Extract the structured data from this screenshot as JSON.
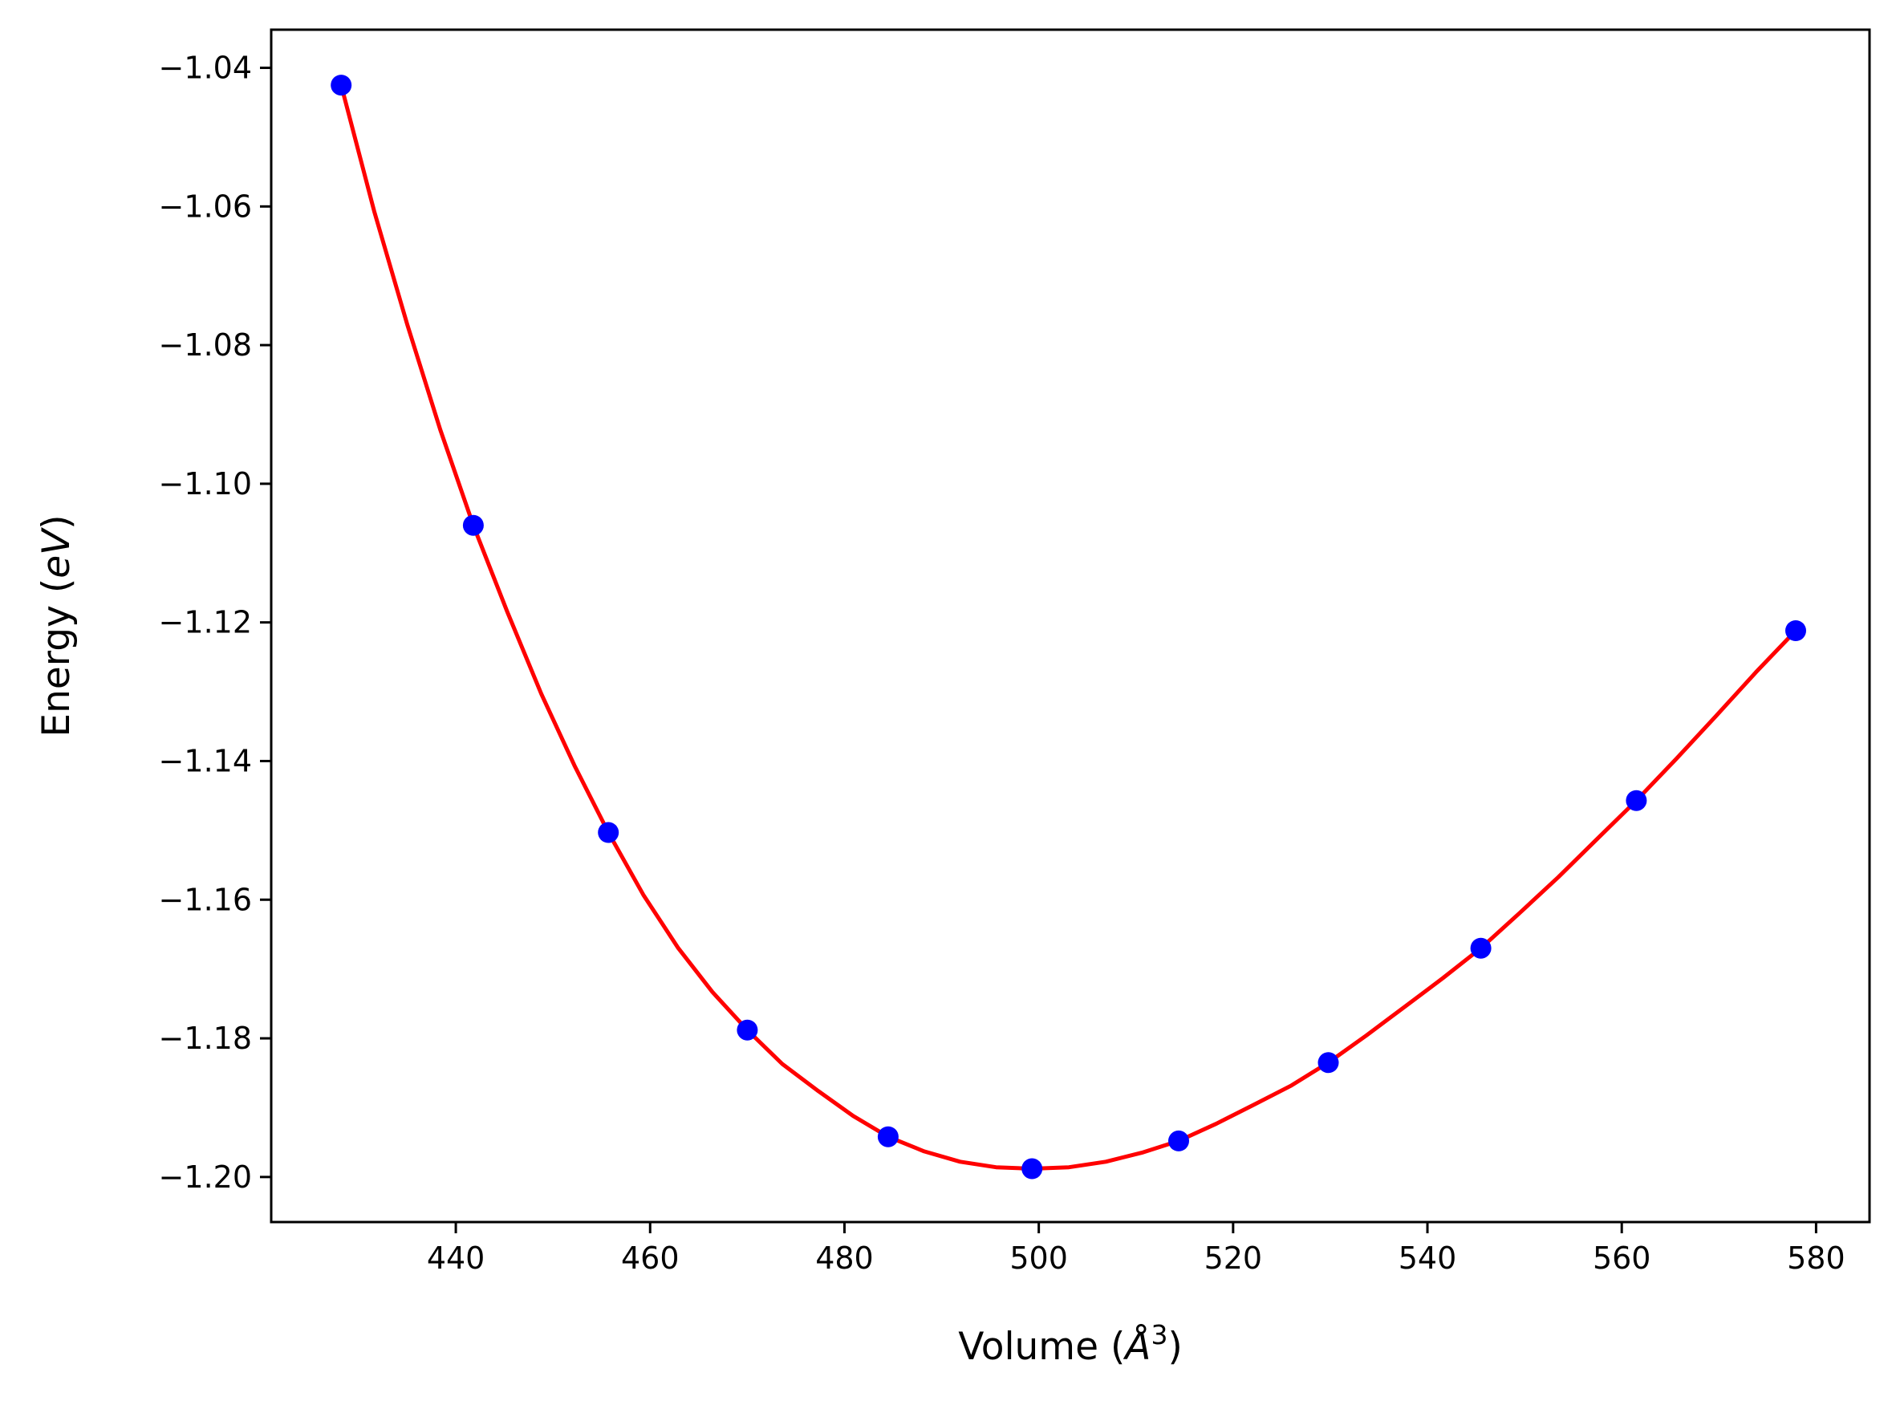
{
  "chart_data": {
    "type": "scatter",
    "xlabel": "Volume (",
    "xlabel_unit": "Å",
    "xlabel_power": "3",
    "xlabel_close": ")",
    "ylabel": "Energy (",
    "ylabel_unit": "eV",
    "ylabel_close": ")",
    "xlim": [
      421,
      585.5
    ],
    "ylim": [
      -1.2065,
      -1.0345
    ],
    "x_ticks": [
      440,
      460,
      480,
      500,
      520,
      540,
      560,
      580
    ],
    "x_tick_labels": [
      "440",
      "460",
      "480",
      "500",
      "520",
      "540",
      "560",
      "580"
    ],
    "y_ticks": [
      -1.04,
      -1.06,
      -1.08,
      -1.1,
      -1.12,
      -1.14,
      -1.16,
      -1.18,
      -1.2
    ],
    "y_tick_labels": [
      "−1.04",
      "−1.06",
      "−1.08",
      "−1.10",
      "−1.12",
      "−1.14",
      "−1.16",
      "−1.18",
      "−1.20"
    ],
    "grid": false,
    "legend": "none",
    "series": [
      {
        "kind": "points",
        "color": "#0000ff",
        "x": [
          428.2,
          441.8,
          455.7,
          470.0,
          484.5,
          499.3,
          514.4,
          529.8,
          545.5,
          561.5,
          577.9
        ],
        "y": [
          -1.0425,
          -1.106,
          -1.1503,
          -1.1788,
          -1.1942,
          -1.1988,
          -1.1948,
          -1.1835,
          -1.167,
          -1.1457,
          -1.1212
        ]
      },
      {
        "kind": "fit-curve",
        "color": "#ff0000",
        "x": [
          428.2,
          431.6,
          435.0,
          438.4,
          441.8,
          445.3,
          448.8,
          452.2,
          455.7,
          459.3,
          462.9,
          466.4,
          470.0,
          473.6,
          477.3,
          480.9,
          484.5,
          488.2,
          491.9,
          495.6,
          499.3,
          503.1,
          506.9,
          510.6,
          514.4,
          518.3,
          522.1,
          526.0,
          529.8,
          533.7,
          537.6,
          541.6,
          545.5,
          549.5,
          553.5,
          557.5,
          561.5,
          565.6,
          569.7,
          573.8,
          577.9
        ],
        "y": [
          -1.0425,
          -1.0607,
          -1.077,
          -1.0922,
          -1.106,
          -1.1185,
          -1.1303,
          -1.1406,
          -1.1503,
          -1.1593,
          -1.167,
          -1.1733,
          -1.1788,
          -1.1837,
          -1.1876,
          -1.1912,
          -1.1942,
          -1.1963,
          -1.1978,
          -1.1986,
          -1.1988,
          -1.1986,
          -1.1978,
          -1.1965,
          -1.1948,
          -1.1923,
          -1.1896,
          -1.1868,
          -1.1835,
          -1.1796,
          -1.1755,
          -1.1713,
          -1.167,
          -1.1619,
          -1.1567,
          -1.1512,
          -1.1457,
          -1.1397,
          -1.1335,
          -1.1272,
          -1.1212
        ]
      }
    ]
  }
}
